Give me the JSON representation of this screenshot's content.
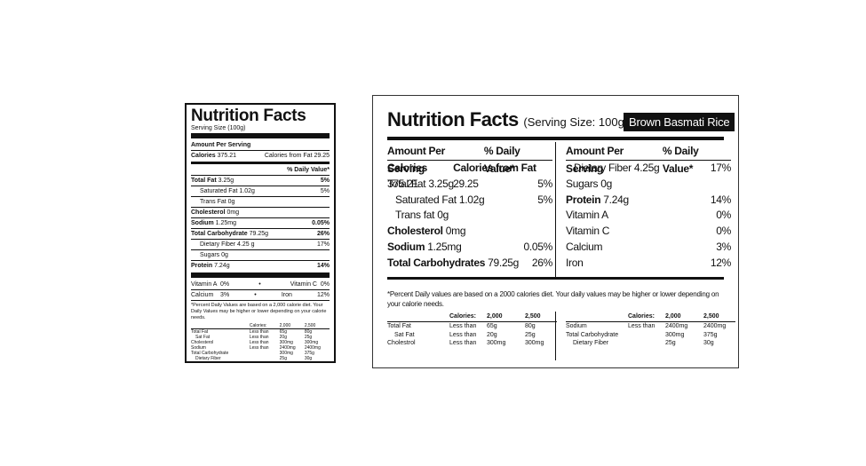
{
  "vertical": {
    "title": "Nutrition Facts",
    "serving": "Serving Size (100g)",
    "amount_per_serving": "Amount Per Serving",
    "calories_label": "Calories",
    "calories_value": "375.21",
    "cal_fat_label": "Calories from Fat",
    "cal_fat_value": "29.25",
    "dv_header": "% Daily Value*",
    "rows": [
      {
        "label": "Total Fat",
        "amount": "3.25g",
        "dv": "5%",
        "bold": true,
        "indent": false
      },
      {
        "label": "Saturated Fat",
        "amount": "1.02g",
        "dv": "5%",
        "bold": false,
        "indent": true
      },
      {
        "label": "Trans Fat",
        "amount": "0g",
        "dv": "",
        "bold": false,
        "indent": true
      },
      {
        "label": "Cholesterol",
        "amount": "0mg",
        "dv": "",
        "bold": true,
        "indent": false
      },
      {
        "label": "Sodium",
        "amount": "1.25mg",
        "dv": "0.05%",
        "bold": true,
        "indent": false
      },
      {
        "label": "Total Carbohydrate",
        "amount": "79.25g",
        "dv": "26%",
        "bold": true,
        "indent": false
      },
      {
        "label": "Dietary Fiber",
        "amount": "4.25 g",
        "dv": "17%",
        "bold": false,
        "indent": true
      },
      {
        "label": "Sugars",
        "amount": "0g",
        "dv": "",
        "bold": false,
        "indent": true
      },
      {
        "label": "Protein",
        "amount": "7.24g",
        "dv": "14%",
        "bold": true,
        "indent": false
      }
    ],
    "vit_a": "Vitamin A  0%",
    "vit_c": "Vitamin C  0%",
    "calcium": "Calcium    3%",
    "iron": "Iron",
    "iron_dv": "12%",
    "bullet": "•",
    "footnote": "*Percent Daily Values are based on a 2,000 calorie diet. Your Daily Values may be higher or lower depending on your calorie needs.",
    "table": {
      "head": [
        "",
        "Calories:",
        "2,000",
        "2,500"
      ],
      "rows": [
        [
          "Total Fat",
          "Less than",
          "65g",
          "80g"
        ],
        [
          "Sat Fat",
          "Less than",
          "20g",
          "25g"
        ],
        [
          "Cholesterol",
          "Less than",
          "300mg",
          "300mg"
        ],
        [
          "Sodium",
          "Less than",
          "2400mg",
          "2400mg"
        ],
        [
          "Total Carbohydrate",
          "",
          "300mg",
          "375g"
        ],
        [
          "Dietary Fiber",
          "",
          "25g",
          "30g"
        ]
      ]
    }
  },
  "horizontal": {
    "title": "Nutrition Facts",
    "serving": "(Serving Size: 100g)",
    "product": "Brown Basmati Rice",
    "left": {
      "hdr_amount": "Amount Per Serving",
      "hdr_dv": "% Daily Value*",
      "rows": [
        {
          "label": "Calories",
          "amount": "375.21",
          "dv_label": "Calories from Fat",
          "dv": "29.25",
          "bold": true,
          "indent": false
        },
        {
          "label": "Total Fat",
          "amount": "3.25g",
          "dv": "5%",
          "bold": false,
          "indent": false
        },
        {
          "label": "Saturated Fat",
          "amount": "1.02g",
          "dv": "5%",
          "bold": false,
          "indent": true
        },
        {
          "label": "Trans fat",
          "amount": "0g",
          "dv": "",
          "bold": false,
          "indent": true
        },
        {
          "label": "Cholesterol",
          "amount": "0mg",
          "dv": "",
          "bold": true,
          "indent": false
        },
        {
          "label": "Sodium",
          "amount": "1.25mg",
          "dv": "0.05%",
          "bold": true,
          "indent": false
        },
        {
          "label": "Total Carbohydrates",
          "amount": "79.25g",
          "dv": "26%",
          "bold": true,
          "indent": false
        }
      ]
    },
    "right": {
      "hdr_amount": "Amount Per Serving",
      "hdr_dv": "% Daily Value*",
      "rows": [
        {
          "label": "Dietary Fiber",
          "amount": "4.25g",
          "dv": "17%",
          "bold": false,
          "indent": true
        },
        {
          "label": "Sugars",
          "amount": "0g",
          "dv": "",
          "bold": false,
          "indent": false
        },
        {
          "label": "Protein",
          "amount": "7.24g",
          "dv": "14%",
          "bold": true,
          "indent": false
        },
        {
          "label": "Vitamin A",
          "amount": "",
          "dv": "0%",
          "bold": false,
          "indent": false
        },
        {
          "label": "Vitamin C",
          "amount": "",
          "dv": "0%",
          "bold": false,
          "indent": false
        },
        {
          "label": "Calcium",
          "amount": "",
          "dv": "3%",
          "bold": false,
          "indent": false
        },
        {
          "label": "Iron",
          "amount": "",
          "dv": "12%",
          "bold": false,
          "indent": false
        }
      ]
    },
    "footnote": "*Percent Daily values are based on a 2000 calories diet. Your daily values may be higher or lower depending on your calorie needs.",
    "table_left": {
      "head": [
        "",
        "Calories:",
        "2,000",
        "2,500"
      ],
      "rows": [
        [
          "Total Fat",
          "Less than",
          "65g",
          "80g"
        ],
        [
          "Sat Fat",
          "Less than",
          "20g",
          "25g"
        ],
        [
          "Cholestrol",
          "Less than",
          "300mg",
          "300mg"
        ]
      ]
    },
    "table_right": {
      "head": [
        "",
        "Calories:",
        "2,000",
        "2,500"
      ],
      "rows": [
        [
          "Sodium",
          "Less than",
          "2400mg",
          "2400mg"
        ],
        [
          "Total Carbohydrate",
          "",
          "300mg",
          "375g"
        ],
        [
          "Dietary Fiber",
          "",
          "25g",
          "30g"
        ]
      ]
    }
  }
}
